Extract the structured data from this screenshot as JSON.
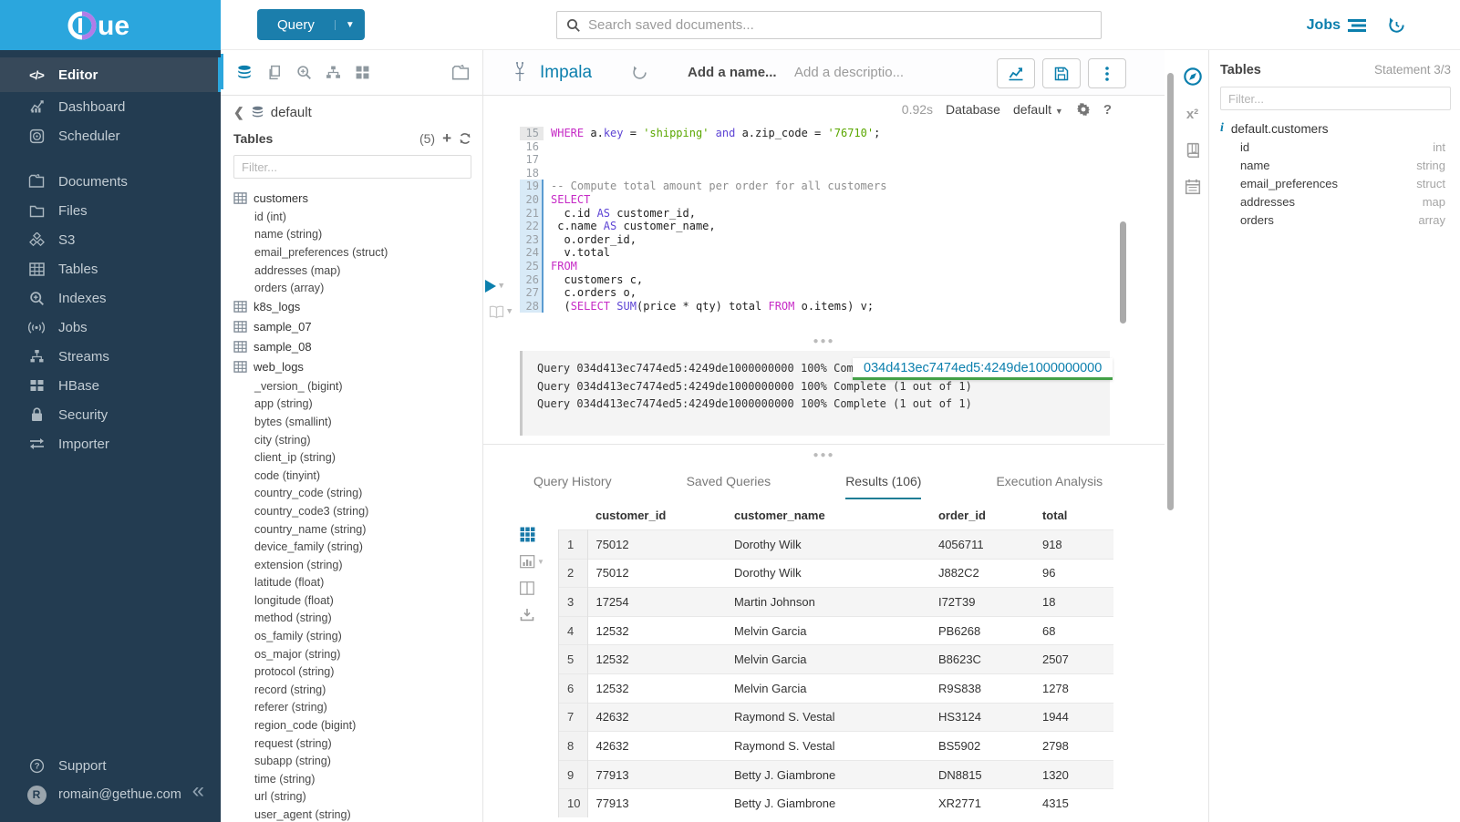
{
  "topbar": {
    "query_label": "Query",
    "search_placeholder": "Search saved documents...",
    "jobs_label": "Jobs"
  },
  "brand": {
    "logo_text": "ue",
    "accent_color": "#b07ce8",
    "bar_color": "#2ba6dd",
    "link_color": "#0b7fad"
  },
  "sidebar": {
    "items": [
      {
        "label": "Editor",
        "icon": "code",
        "active": true
      },
      {
        "label": "Dashboard",
        "icon": "dashboard"
      },
      {
        "label": "Scheduler",
        "icon": "scheduler"
      },
      {
        "label": "Documents",
        "icon": "documents",
        "gap": true
      },
      {
        "label": "Files",
        "icon": "files"
      },
      {
        "label": "S3",
        "icon": "s3"
      },
      {
        "label": "Tables",
        "icon": "tables"
      },
      {
        "label": "Indexes",
        "icon": "indexes"
      },
      {
        "label": "Jobs",
        "icon": "jobs"
      },
      {
        "label": "Streams",
        "icon": "streams"
      },
      {
        "label": "HBase",
        "icon": "hbase"
      },
      {
        "label": "Security",
        "icon": "security"
      },
      {
        "label": "Importer",
        "icon": "importer"
      }
    ],
    "support_label": "Support",
    "user_email": "romain@gethue.com",
    "user_initial": "R"
  },
  "assist": {
    "database": "default",
    "tables_label": "Tables",
    "tables_count": "(5)",
    "filter_placeholder": "Filter...",
    "tables": [
      {
        "name": "customers",
        "columns": [
          "id (int)",
          "name (string)",
          "email_preferences (struct)",
          "addresses (map)",
          "orders (array)"
        ]
      },
      {
        "name": "k8s_logs",
        "columns": []
      },
      {
        "name": "sample_07",
        "columns": []
      },
      {
        "name": "sample_08",
        "columns": []
      },
      {
        "name": "web_logs",
        "columns": [
          "_version_ (bigint)",
          "app (string)",
          "bytes (smallint)",
          "city (string)",
          "client_ip (string)",
          "code (tinyint)",
          "country_code (string)",
          "country_code3 (string)",
          "country_name (string)",
          "device_family (string)",
          "extension (string)",
          "latitude (float)",
          "longitude (float)",
          "method (string)",
          "os_family (string)",
          "os_major (string)",
          "protocol (string)",
          "record (string)",
          "referer (string)",
          "region_code (bigint)",
          "request (string)",
          "subapp (string)",
          "time (string)",
          "url (string)",
          "user_agent (string)"
        ]
      }
    ]
  },
  "editor": {
    "engine": "Impala",
    "name_placeholder": "Add a name...",
    "description_placeholder": "Add a descriptio...",
    "execution_time": "0.92s",
    "database_label": "Database",
    "database_value": "default",
    "code_lines": [
      {
        "n": "15",
        "g": "prev",
        "t": [
          [
            "WHERE",
            "kw"
          ],
          [
            " a.",
            "pl"
          ],
          [
            "key",
            "kw2"
          ],
          [
            " = ",
            "pl"
          ],
          [
            "'shipping'",
            "str"
          ],
          [
            " ",
            "pl"
          ],
          [
            "and",
            "kw2"
          ],
          [
            " a.zip_code = ",
            "pl"
          ],
          [
            "'76710'",
            "str"
          ],
          [
            ";",
            "pl"
          ]
        ]
      },
      {
        "n": "16",
        "g": "",
        "t": []
      },
      {
        "n": "17",
        "g": "",
        "t": []
      },
      {
        "n": "18",
        "g": "",
        "t": []
      },
      {
        "n": "19",
        "g": "active",
        "t": [
          [
            "-- Compute total amount per order for all customers",
            "cm"
          ]
        ]
      },
      {
        "n": "20",
        "g": "active",
        "t": [
          [
            "SELECT",
            "kw"
          ]
        ]
      },
      {
        "n": "21",
        "g": "active",
        "t": [
          [
            "  c.id ",
            "pl"
          ],
          [
            "AS",
            "kw2"
          ],
          [
            " customer_id,",
            "pl"
          ]
        ]
      },
      {
        "n": "22",
        "g": "active",
        "t": [
          [
            " c.name ",
            "pl"
          ],
          [
            "AS",
            "kw2"
          ],
          [
            " customer_name,",
            "pl"
          ]
        ]
      },
      {
        "n": "23",
        "g": "active",
        "t": [
          [
            "  o.order_id,",
            "pl"
          ]
        ]
      },
      {
        "n": "24",
        "g": "active",
        "t": [
          [
            "  v.total",
            "pl"
          ]
        ]
      },
      {
        "n": "25",
        "g": "active",
        "t": [
          [
            "FROM",
            "kw"
          ]
        ]
      },
      {
        "n": "26",
        "g": "active",
        "t": [
          [
            "  customers c,",
            "pl"
          ]
        ]
      },
      {
        "n": "27",
        "g": "active",
        "t": [
          [
            "  c.orders o,",
            "pl"
          ]
        ]
      },
      {
        "n": "28",
        "g": "active",
        "t": [
          [
            "  (",
            "pl"
          ],
          [
            "SELECT",
            "kw"
          ],
          [
            " ",
            "pl"
          ],
          [
            "SUM",
            "kw2"
          ],
          [
            "(price * qty) total ",
            "pl"
          ],
          [
            "FROM",
            "kw"
          ],
          [
            " o.items) v;",
            "pl"
          ]
        ]
      }
    ]
  },
  "log": {
    "lines": [
      "Query 034d413ec7474ed5:4249de1000000000 100% Complete (1 out of 1)",
      "Query 034d413ec7474ed5:4249de1000000000 100% Complete (1 out of 1)",
      "Query 034d413ec7474ed5:4249de1000000000 100% Complete (1 out of 1)"
    ],
    "tooltip": "034d413ec7474ed5:4249de1000000000"
  },
  "tabs": [
    {
      "label": "Query History"
    },
    {
      "label": "Saved Queries"
    },
    {
      "label": "Results (106)",
      "active": true
    },
    {
      "label": "Execution Analysis"
    }
  ],
  "results": {
    "columns": [
      "customer_id",
      "customer_name",
      "order_id",
      "total"
    ],
    "rows": [
      [
        "1",
        "75012",
        "Dorothy Wilk",
        "4056711",
        "918"
      ],
      [
        "2",
        "75012",
        "Dorothy Wilk",
        "J882C2",
        "96"
      ],
      [
        "3",
        "17254",
        "Martin Johnson",
        "I72T39",
        "18"
      ],
      [
        "4",
        "12532",
        "Melvin Garcia",
        "PB6268",
        "68"
      ],
      [
        "5",
        "12532",
        "Melvin Garcia",
        "B8623C",
        "2507"
      ],
      [
        "6",
        "12532",
        "Melvin Garcia",
        "R9S838",
        "1278"
      ],
      [
        "7",
        "42632",
        "Raymond S. Vestal",
        "HS3124",
        "1944"
      ],
      [
        "8",
        "42632",
        "Raymond S. Vestal",
        "BS5902",
        "2798"
      ],
      [
        "9",
        "77913",
        "Betty J. Giambrone",
        "DN8815",
        "1320"
      ],
      [
        "10",
        "77913",
        "Betty J. Giambrone",
        "XR2771",
        "4315"
      ]
    ]
  },
  "right_panel": {
    "title": "Tables",
    "statement": "Statement 3/3",
    "filter_placeholder": "Filter...",
    "table": "default.customers",
    "columns": [
      {
        "name": "id",
        "type": "int"
      },
      {
        "name": "name",
        "type": "string"
      },
      {
        "name": "email_preferences",
        "type": "struct"
      },
      {
        "name": "addresses",
        "type": "map"
      },
      {
        "name": "orders",
        "type": "array"
      }
    ]
  }
}
